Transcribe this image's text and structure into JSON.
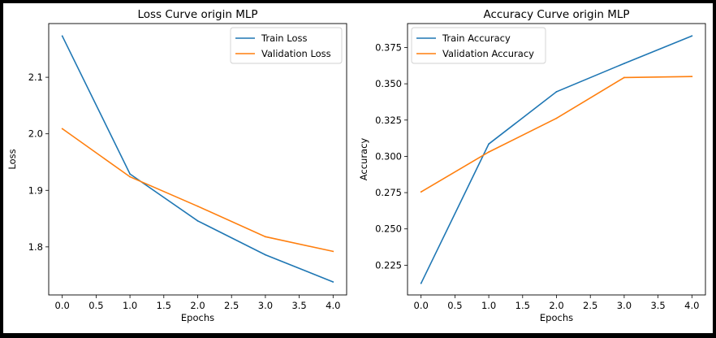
{
  "chart_data": [
    {
      "type": "line",
      "title": "Loss Curve origin MLP",
      "xlabel": "Epochs",
      "ylabel": "Loss",
      "x": [
        0,
        1,
        2,
        3,
        4
      ],
      "xlim": [
        -0.2,
        4.2
      ],
      "ylim": [
        1.715,
        2.195
      ],
      "xticks": [
        "0.0",
        "0.5",
        "1.0",
        "1.5",
        "2.0",
        "2.5",
        "3.0",
        "3.5",
        "4.0"
      ],
      "yticks": [
        "1.8",
        "1.9",
        "2.0",
        "2.1"
      ],
      "grid": false,
      "legend_position": "top-right",
      "series": [
        {
          "name": "Train Loss",
          "color": "#1f77b4",
          "values": [
            2.173,
            1.929,
            1.846,
            1.786,
            1.738
          ]
        },
        {
          "name": "Validation Loss",
          "color": "#ff7f0e",
          "values": [
            2.009,
            1.924,
            1.872,
            1.818,
            1.792
          ]
        }
      ]
    },
    {
      "type": "line",
      "title": "Accuracy Curve origin MLP",
      "xlabel": "Epochs",
      "ylabel": "Accuracy",
      "x": [
        0,
        1,
        2,
        3,
        4
      ],
      "xlim": [
        -0.2,
        4.2
      ],
      "ylim": [
        0.2045,
        0.3915
      ],
      "xticks": [
        "0.0",
        "0.5",
        "1.0",
        "1.5",
        "2.0",
        "2.5",
        "3.0",
        "3.5",
        "4.0"
      ],
      "yticks": [
        "0.225",
        "0.250",
        "0.275",
        "0.300",
        "0.325",
        "0.350",
        "0.375"
      ],
      "grid": false,
      "legend_position": "top-left",
      "series": [
        {
          "name": "Train Accuracy",
          "color": "#1f77b4",
          "values": [
            0.2125,
            0.3085,
            0.3445,
            0.364,
            0.383
          ]
        },
        {
          "name": "Validation Accuracy",
          "color": "#ff7f0e",
          "values": [
            0.2755,
            0.303,
            0.3262,
            0.3543,
            0.355
          ]
        }
      ]
    }
  ]
}
